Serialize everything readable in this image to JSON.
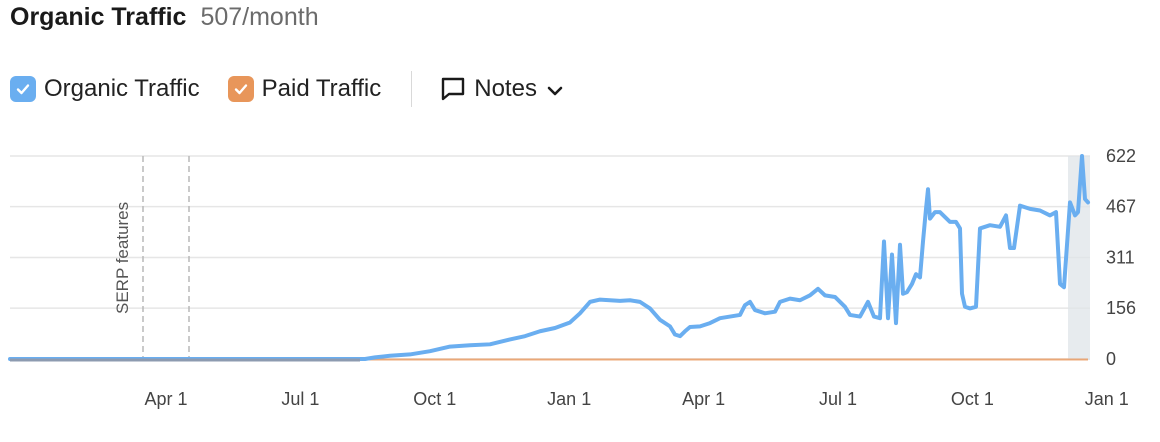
{
  "header": {
    "title": "Organic Traffic",
    "value": "507/month"
  },
  "legend": {
    "items": [
      {
        "label": "Organic Traffic",
        "color": "#6aaef0",
        "checked": true
      },
      {
        "label": "Paid Traffic",
        "color": "#e8965a",
        "checked": true
      }
    ],
    "notes_label": "Notes"
  },
  "chart_data": {
    "type": "line",
    "x_tick_labels": [
      "Apr 1",
      "Jul 1",
      "Oct 1",
      "Jan 1",
      "Apr 1",
      "Jul 1",
      "Oct 1",
      "Jan 1"
    ],
    "y_tick_labels": [
      "622",
      "467",
      "311",
      "156",
      "0"
    ],
    "y_ticks": [
      622,
      467,
      311,
      156,
      0
    ],
    "ylim": [
      0,
      622
    ],
    "grid": true,
    "annotation": "SERP features",
    "series": [
      {
        "name": "Organic Traffic",
        "color": "#6aaef0",
        "points": [
          [
            0,
            0
          ],
          [
            355,
            0
          ],
          [
            365,
            5
          ],
          [
            380,
            10
          ],
          [
            400,
            14
          ],
          [
            420,
            24
          ],
          [
            440,
            38
          ],
          [
            460,
            42
          ],
          [
            480,
            45
          ],
          [
            500,
            60
          ],
          [
            515,
            70
          ],
          [
            530,
            85
          ],
          [
            545,
            95
          ],
          [
            560,
            112
          ],
          [
            570,
            140
          ],
          [
            580,
            175
          ],
          [
            590,
            182
          ],
          [
            600,
            180
          ],
          [
            610,
            178
          ],
          [
            620,
            180
          ],
          [
            630,
            175
          ],
          [
            640,
            155
          ],
          [
            650,
            120
          ],
          [
            660,
            100
          ],
          [
            665,
            75
          ],
          [
            670,
            70
          ],
          [
            675,
            85
          ],
          [
            680,
            98
          ],
          [
            690,
            100
          ],
          [
            700,
            110
          ],
          [
            710,
            125
          ],
          [
            720,
            130
          ],
          [
            730,
            135
          ],
          [
            735,
            165
          ],
          [
            740,
            175
          ],
          [
            745,
            150
          ],
          [
            755,
            140
          ],
          [
            765,
            145
          ],
          [
            770,
            175
          ],
          [
            780,
            185
          ],
          [
            790,
            180
          ],
          [
            800,
            195
          ],
          [
            808,
            215
          ],
          [
            815,
            195
          ],
          [
            825,
            190
          ],
          [
            835,
            160
          ],
          [
            840,
            135
          ],
          [
            850,
            130
          ],
          [
            858,
            175
          ],
          [
            864,
            130
          ],
          [
            870,
            125
          ],
          [
            874,
            360
          ],
          [
            878,
            125
          ],
          [
            882,
            320
          ],
          [
            886,
            110
          ],
          [
            890,
            350
          ],
          [
            893,
            200
          ],
          [
            897,
            205
          ],
          [
            902,
            230
          ],
          [
            906,
            260
          ],
          [
            910,
            250
          ],
          [
            913,
            360
          ],
          [
            916,
            460
          ],
          [
            918,
            520
          ],
          [
            920,
            430
          ],
          [
            925,
            450
          ],
          [
            930,
            450
          ],
          [
            940,
            420
          ],
          [
            946,
            420
          ],
          [
            950,
            400
          ],
          [
            952,
            200
          ],
          [
            955,
            160
          ],
          [
            960,
            155
          ],
          [
            966,
            160
          ],
          [
            970,
            400
          ],
          [
            980,
            410
          ],
          [
            990,
            405
          ],
          [
            996,
            440
          ],
          [
            1000,
            340
          ],
          [
            1004,
            340
          ],
          [
            1010,
            470
          ],
          [
            1020,
            460
          ],
          [
            1030,
            455
          ],
          [
            1040,
            440
          ],
          [
            1046,
            450
          ],
          [
            1050,
            230
          ],
          [
            1054,
            220
          ],
          [
            1060,
            480
          ],
          [
            1065,
            440
          ],
          [
            1068,
            450
          ],
          [
            1072,
            622
          ],
          [
            1075,
            490
          ],
          [
            1078,
            480
          ]
        ]
      },
      {
        "name": "Paid Traffic",
        "color": "#e8965a",
        "points": [
          [
            0,
            0
          ],
          [
            1078,
            0
          ]
        ]
      }
    ]
  }
}
